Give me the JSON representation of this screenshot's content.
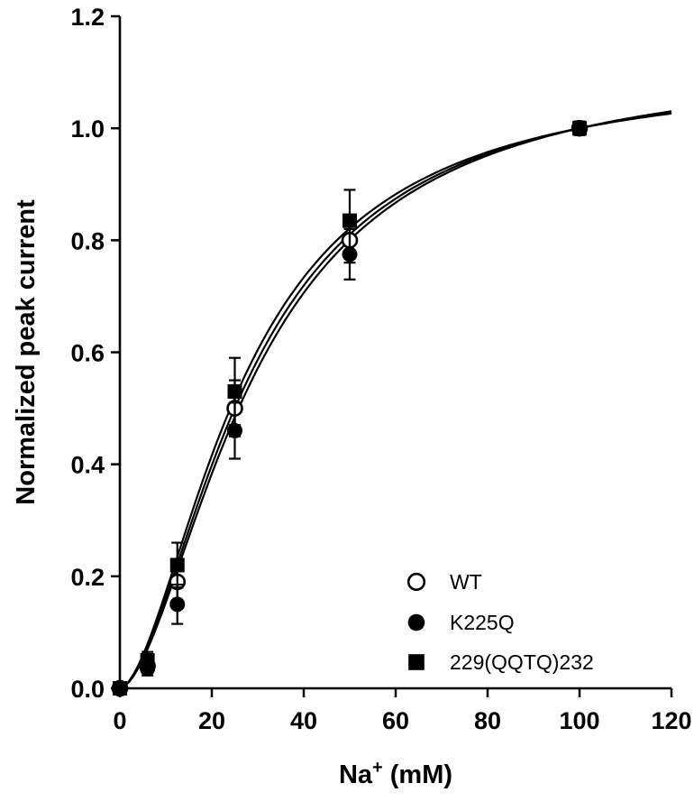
{
  "page": {
    "background": "#ffffff"
  },
  "chart_data": {
    "type": "scatter",
    "title": "",
    "ylabel": "Normalized peak current",
    "xlabel": {
      "pre": "Na",
      "sup": "+",
      "post": " (mM)"
    },
    "xlim": [
      0,
      120
    ],
    "ylim": [
      0,
      1.2
    ],
    "xticks": [
      0,
      20,
      40,
      60,
      80,
      100,
      120
    ],
    "yticks": [
      "0.0",
      "0.2",
      "0.4",
      "0.6",
      "0.8",
      "1.0",
      "1.2"
    ],
    "grid": false,
    "axis_color": "#000000",
    "marker_color": "#000000",
    "fit_normalize_x": 100,
    "x": [
      0,
      6,
      12.5,
      25,
      50,
      100
    ],
    "series": [
      {
        "name": "WT",
        "marker": "open-circle",
        "y": [
          0,
          0.04,
          0.19,
          0.5,
          0.8,
          1.0
        ],
        "err": [
          0,
          0.012,
          0.035,
          0.05,
          0.04,
          0.012
        ],
        "fit": {
          "k": 28.2,
          "n": 1.71
        }
      },
      {
        "name": "K225Q",
        "marker": "filled-circle",
        "y": [
          0,
          0.035,
          0.15,
          0.46,
          0.775,
          1.0
        ],
        "err": [
          0,
          0.012,
          0.035,
          0.05,
          0.045,
          0.012
        ],
        "fit": {
          "k": 29.4,
          "n": 1.71
        }
      },
      {
        "name": "229(QQTQ)232",
        "marker": "filled-square",
        "y": [
          0,
          0.05,
          0.22,
          0.53,
          0.835,
          1.0
        ],
        "err": [
          0,
          0.015,
          0.04,
          0.06,
          0.055,
          0.012
        ],
        "fit": {
          "k": 26.9,
          "n": 1.71
        }
      }
    ],
    "legend": {
      "position": "inside-bottom-right",
      "items": [
        "WT",
        "K225Q",
        "229(QQTQ)232"
      ]
    }
  }
}
